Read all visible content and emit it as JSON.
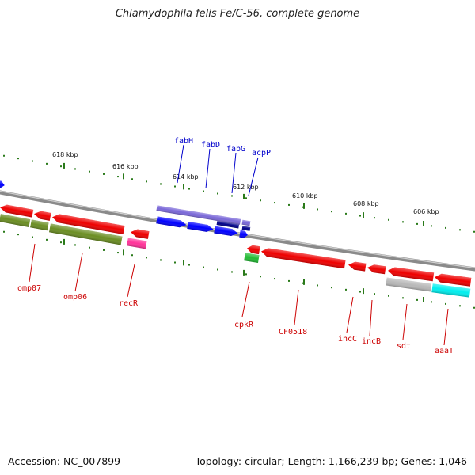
{
  "title": "Chlamydophila felis Fe/C-56, complete genome",
  "footer": {
    "accession": "Accession: NC_007899",
    "summary": "Topology: circular; Length: 1,166,239 bp; Genes: 1,046"
  },
  "colors": {
    "backbone": "#8a8a8a",
    "tick": "#2a7a1a",
    "label_red": "#cc0000",
    "label_blue": "#0000cc",
    "red": "#ee0000",
    "olive": "#6b8e23",
    "magenta": "#ff3399",
    "blue": "#0000ff",
    "purple": "#7a68d8",
    "navy": "#000088",
    "green": "#22bb33",
    "grey": "#b8b8b8",
    "cyan": "#00eeee"
  },
  "ticks": [
    "618 kbp",
    "616 kbp",
    "614 kbp",
    "612 kbp",
    "610 kbp",
    "608 kbp",
    "606 kbp"
  ],
  "gene_labels_top": [
    "fabH",
    "fabD",
    "fabG",
    "acpP"
  ],
  "gene_labels_bottom": [
    "omp07",
    "omp06",
    "recR",
    "cpkR",
    "CF0518",
    "incC",
    "incB",
    "sdt",
    "aaaT"
  ]
}
